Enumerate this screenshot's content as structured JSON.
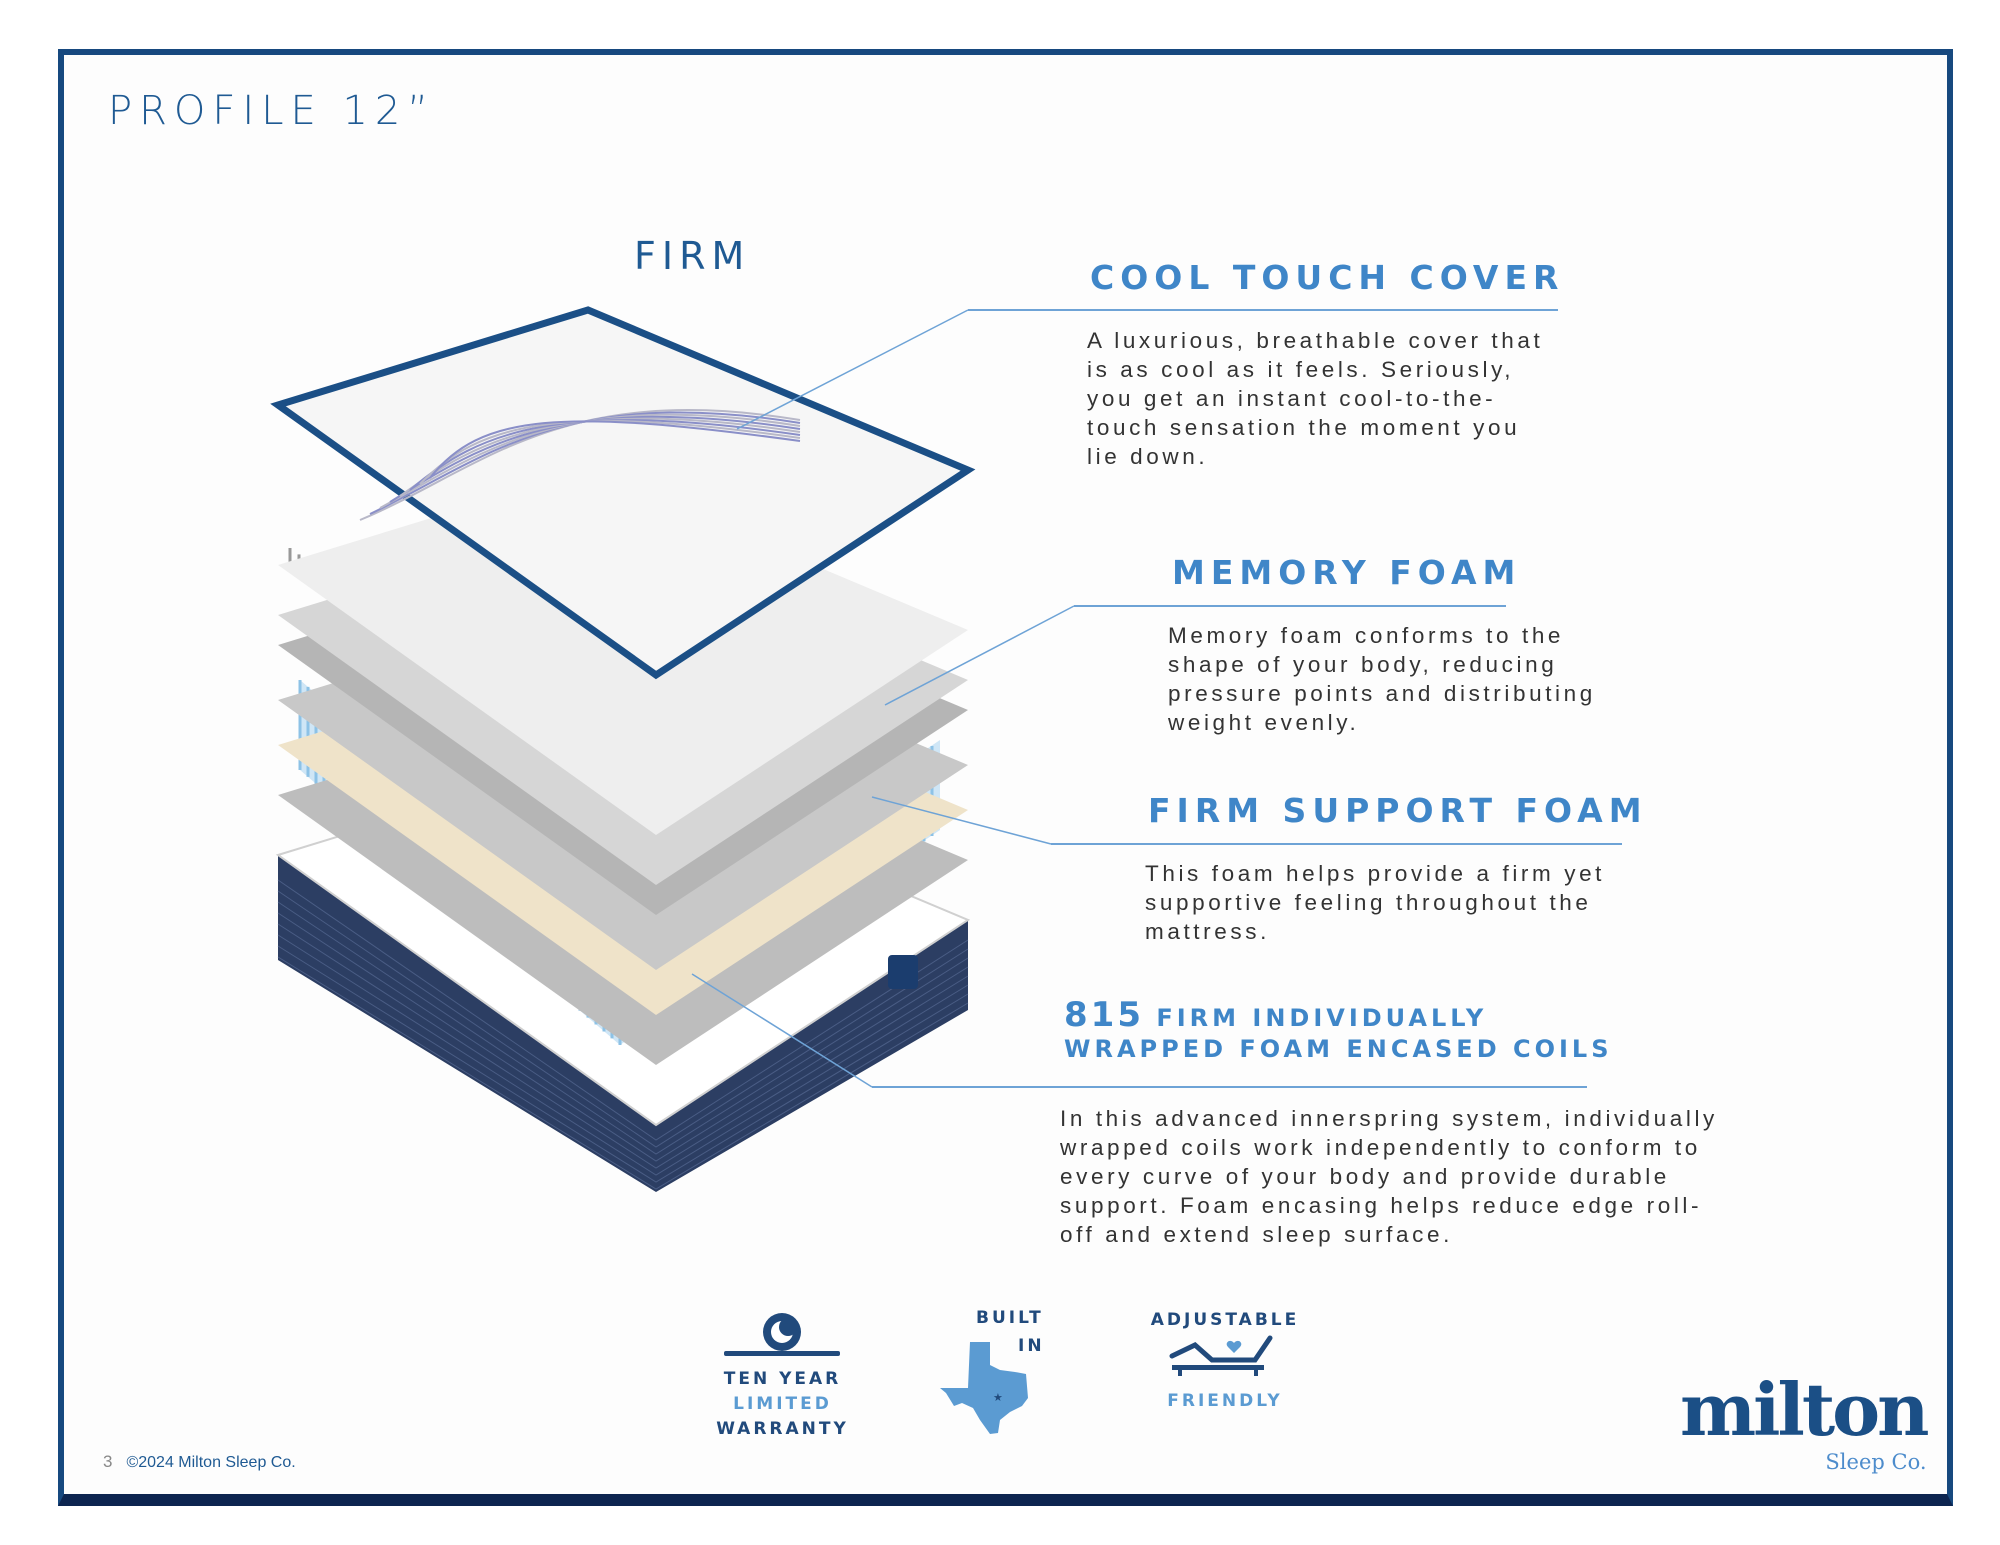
{
  "title": "PROFILE 12”",
  "firmness": "FIRM",
  "features": [
    {
      "heading": "COOL TOUCH COVER",
      "body": "A luxurious, breathable cover that\nis as cool as it feels. Seriously,\nyou get an instant cool-to-the-\ntouch sensation the moment you\nlie down."
    },
    {
      "heading": "MEMORY FOAM",
      "body": "Memory foam conforms to the\nshape of your body, reducing\npressure points and distributing\nweight evenly."
    },
    {
      "heading": "FIRM SUPPORT FOAM",
      "body": "This foam helps provide a firm yet\nsupportive feeling throughout the\nmattress."
    },
    {
      "heading_number": "815",
      "heading_line1": "FIRM INDIVIDUALLY",
      "heading_line2": "WRAPPED FOAM ENCASED COILS",
      "body": "In this advanced innerspring system, individually\nwrapped coils work independently to conform to\nevery curve of your body and provide durable\nsupport. Foam encasing helps reduce edge roll-\noff and extend sleep surface."
    }
  ],
  "badges": {
    "warranty": {
      "line1": "TEN YEAR",
      "line2": "LIMITED",
      "line3": "WARRANTY",
      "icon": "moon-icon"
    },
    "texas": {
      "line1": "BUILT",
      "line2": "IN",
      "icon": "texas-map-icon"
    },
    "adjustable": {
      "line1": "ADJUSTABLE",
      "line2": "FRIENDLY",
      "icon": "adjustable-bed-icon"
    }
  },
  "mattress_label": "milton",
  "footer": {
    "page": "3",
    "copyright": "©2024 Milton Sleep Co."
  },
  "logo": {
    "name": "milton",
    "sub": "Sleep Co."
  },
  "colors": {
    "frame": "#17497f",
    "accent": "#3f86c8",
    "title": "#1f5a93",
    "base": "#2c3e63"
  }
}
